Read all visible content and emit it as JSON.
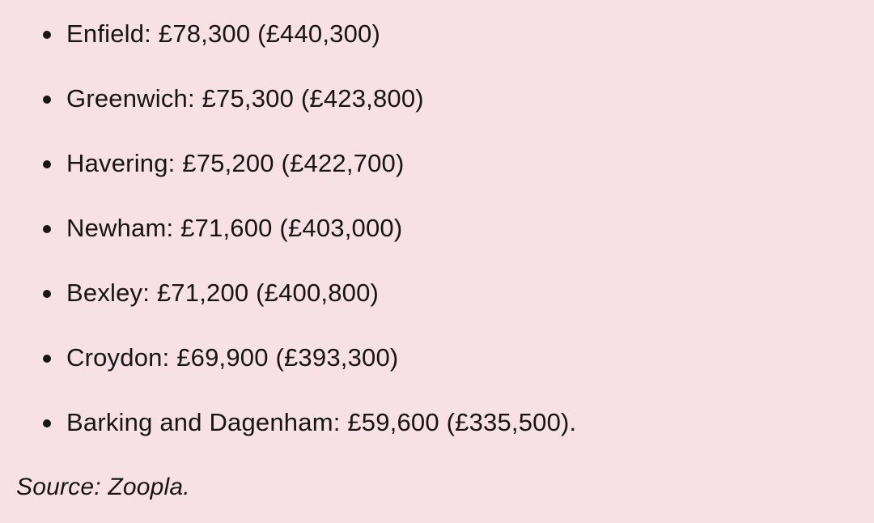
{
  "page": {
    "background_color": "#f7e1e5",
    "text_color": "#161616"
  },
  "list": {
    "items": [
      {
        "borough": "Enfield",
        "value": "£78,300",
        "bracket_value": "£440,300",
        "display": "Enfield: £78,300 (£440,300)"
      },
      {
        "borough": "Greenwich",
        "value": "£75,300",
        "bracket_value": "£423,800",
        "display": "Greenwich: £75,300 (£423,800)"
      },
      {
        "borough": "Havering",
        "value": "£75,200",
        "bracket_value": "£422,700",
        "display": "Havering: £75,200 (£422,700)"
      },
      {
        "borough": "Newham",
        "value": "£71,600",
        "bracket_value": "£403,000",
        "display": "Newham: £71,600 (£403,000)"
      },
      {
        "borough": "Bexley",
        "value": "£71,200",
        "bracket_value": "£400,800",
        "display": "Bexley: £71,200 (£400,800)"
      },
      {
        "borough": "Croydon",
        "value": "£69,900",
        "bracket_value": "£393,300",
        "display": "Croydon: £69,900 (£393,300)"
      },
      {
        "borough": "Barking and Dagenham",
        "value": "£59,600",
        "bracket_value": "£335,500",
        "display": "Barking and Dagenham: £59,600 (£335,500)."
      }
    ]
  },
  "source": {
    "display": "Source: Zoopla."
  }
}
